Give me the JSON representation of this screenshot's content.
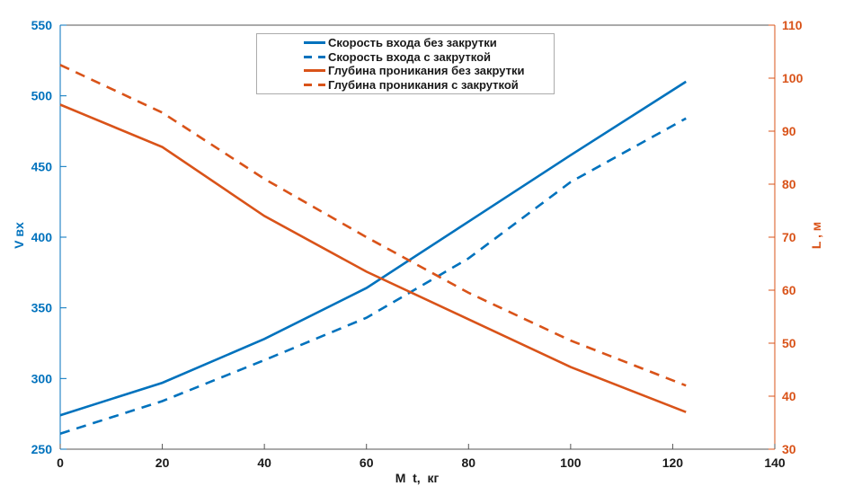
{
  "chart_data": {
    "type": "line",
    "title": "",
    "xlabel": "M  t,  кг",
    "ylabel_left": "V вх",
    "ylabel_right": "L , м",
    "xlim": [
      0,
      140
    ],
    "ylim_left": [
      250,
      550
    ],
    "ylim_right": [
      30,
      110
    ],
    "x_ticks": [
      0,
      20,
      40,
      60,
      80,
      100,
      120,
      140
    ],
    "y_ticks_left": [
      250,
      300,
      350,
      400,
      450,
      500,
      550
    ],
    "y_ticks_right": [
      30,
      40,
      50,
      60,
      70,
      80,
      90,
      100,
      110
    ],
    "grid": false,
    "legend_position": "top-center",
    "x": [
      0,
      20,
      40,
      60,
      80,
      100,
      122.6
    ],
    "series": [
      {
        "name": "entry-speed-no-spin",
        "label": "Скорость входа без закрутки",
        "axis": "left",
        "style": "solid",
        "color": "#0072BD",
        "values": [
          274,
          297,
          328,
          364,
          411,
          458,
          510
        ]
      },
      {
        "name": "entry-speed-with-spin",
        "label": "Скорость входа с закруткой",
        "axis": "left",
        "style": "dashed",
        "color": "#0072BD",
        "values": [
          261,
          284,
          313,
          343,
          385,
          439,
          484
        ]
      },
      {
        "name": "penetration-depth-no-spin",
        "label": "Глубина проникания без закрутки",
        "axis": "right",
        "style": "solid",
        "color": "#D95319",
        "values": [
          95,
          87,
          74,
          63.5,
          54.5,
          45.5,
          37
        ]
      },
      {
        "name": "penetration-depth-with-spin",
        "label": "Глубина проникания с закруткой",
        "axis": "right",
        "style": "dashed",
        "color": "#D95319",
        "values": [
          102.5,
          93.5,
          81,
          70,
          59.5,
          50.5,
          42
        ]
      }
    ],
    "colors": {
      "left_axis": "#0072BD",
      "right_axis": "#D95319",
      "x_axis": "#555555",
      "tick_text": "#1a1a1a",
      "background": "#FFFFFF",
      "legend_border": "#ababab"
    }
  }
}
